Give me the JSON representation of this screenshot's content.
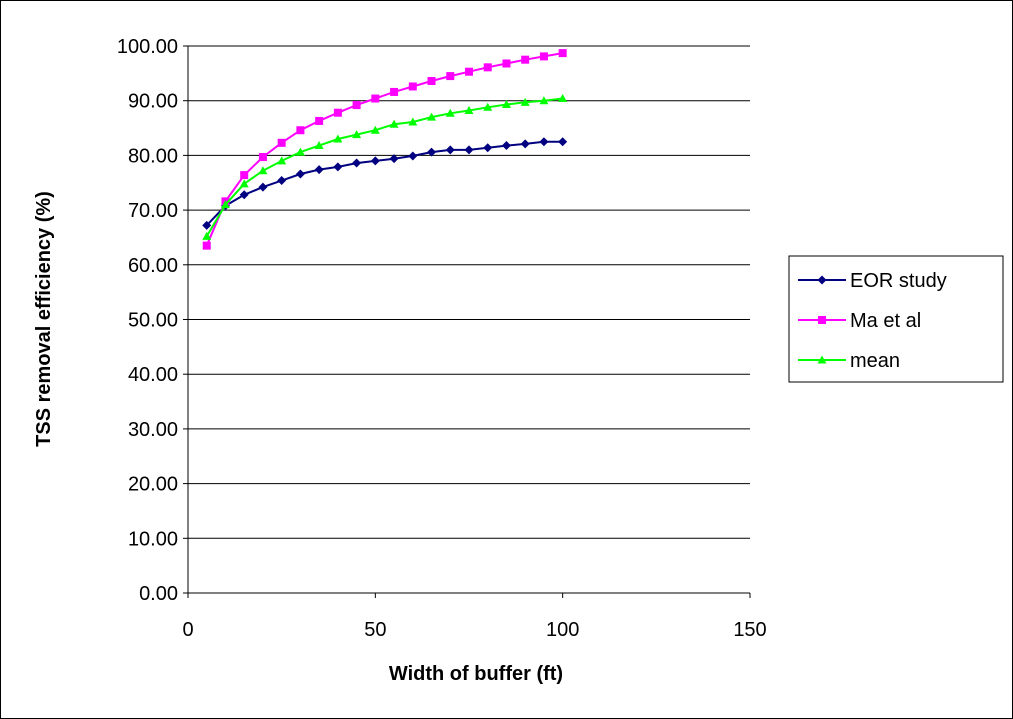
{
  "chart_data": {
    "type": "line",
    "xlabel": "Width of buffer (ft)",
    "ylabel": "TSS removal efficiency (%)",
    "xlim": [
      0,
      150
    ],
    "ylim": [
      0,
      100
    ],
    "x_ticks": [
      "0",
      "50",
      "100",
      "150"
    ],
    "y_ticks": [
      "0.00",
      "10.00",
      "20.00",
      "30.00",
      "40.00",
      "50.00",
      "60.00",
      "70.00",
      "80.00",
      "90.00",
      "100.00"
    ],
    "grid": "horizontal",
    "legend_position": "right",
    "x": [
      5,
      10,
      15,
      20,
      25,
      30,
      35,
      40,
      45,
      50,
      55,
      60,
      65,
      70,
      75,
      80,
      85,
      90,
      95,
      100
    ],
    "series": [
      {
        "name": "EOR study",
        "color": "#000080",
        "marker": "diamond",
        "values": [
          67.2,
          70.8,
          72.8,
          74.2,
          75.4,
          76.6,
          77.4,
          77.9,
          78.6,
          79.0,
          79.4,
          79.9,
          80.6,
          81.0,
          81.0,
          81.4,
          81.8,
          82.1,
          82.5,
          82.5
        ]
      },
      {
        "name": "Ma et al",
        "color": "#ff00ff",
        "marker": "square",
        "values": [
          63.5,
          71.6,
          76.4,
          79.7,
          82.3,
          84.6,
          86.3,
          87.8,
          89.2,
          90.4,
          91.6,
          92.6,
          93.6,
          94.5,
          95.3,
          96.1,
          96.8,
          97.5,
          98.1,
          98.7
        ]
      },
      {
        "name": "mean",
        "color": "#00ff00",
        "marker": "triangle",
        "values": [
          65.2,
          71.0,
          74.8,
          77.2,
          79.0,
          80.6,
          81.8,
          83.0,
          83.8,
          84.6,
          85.7,
          86.1,
          87.0,
          87.7,
          88.2,
          88.8,
          89.3,
          89.7,
          90.0,
          90.4
        ]
      }
    ]
  }
}
